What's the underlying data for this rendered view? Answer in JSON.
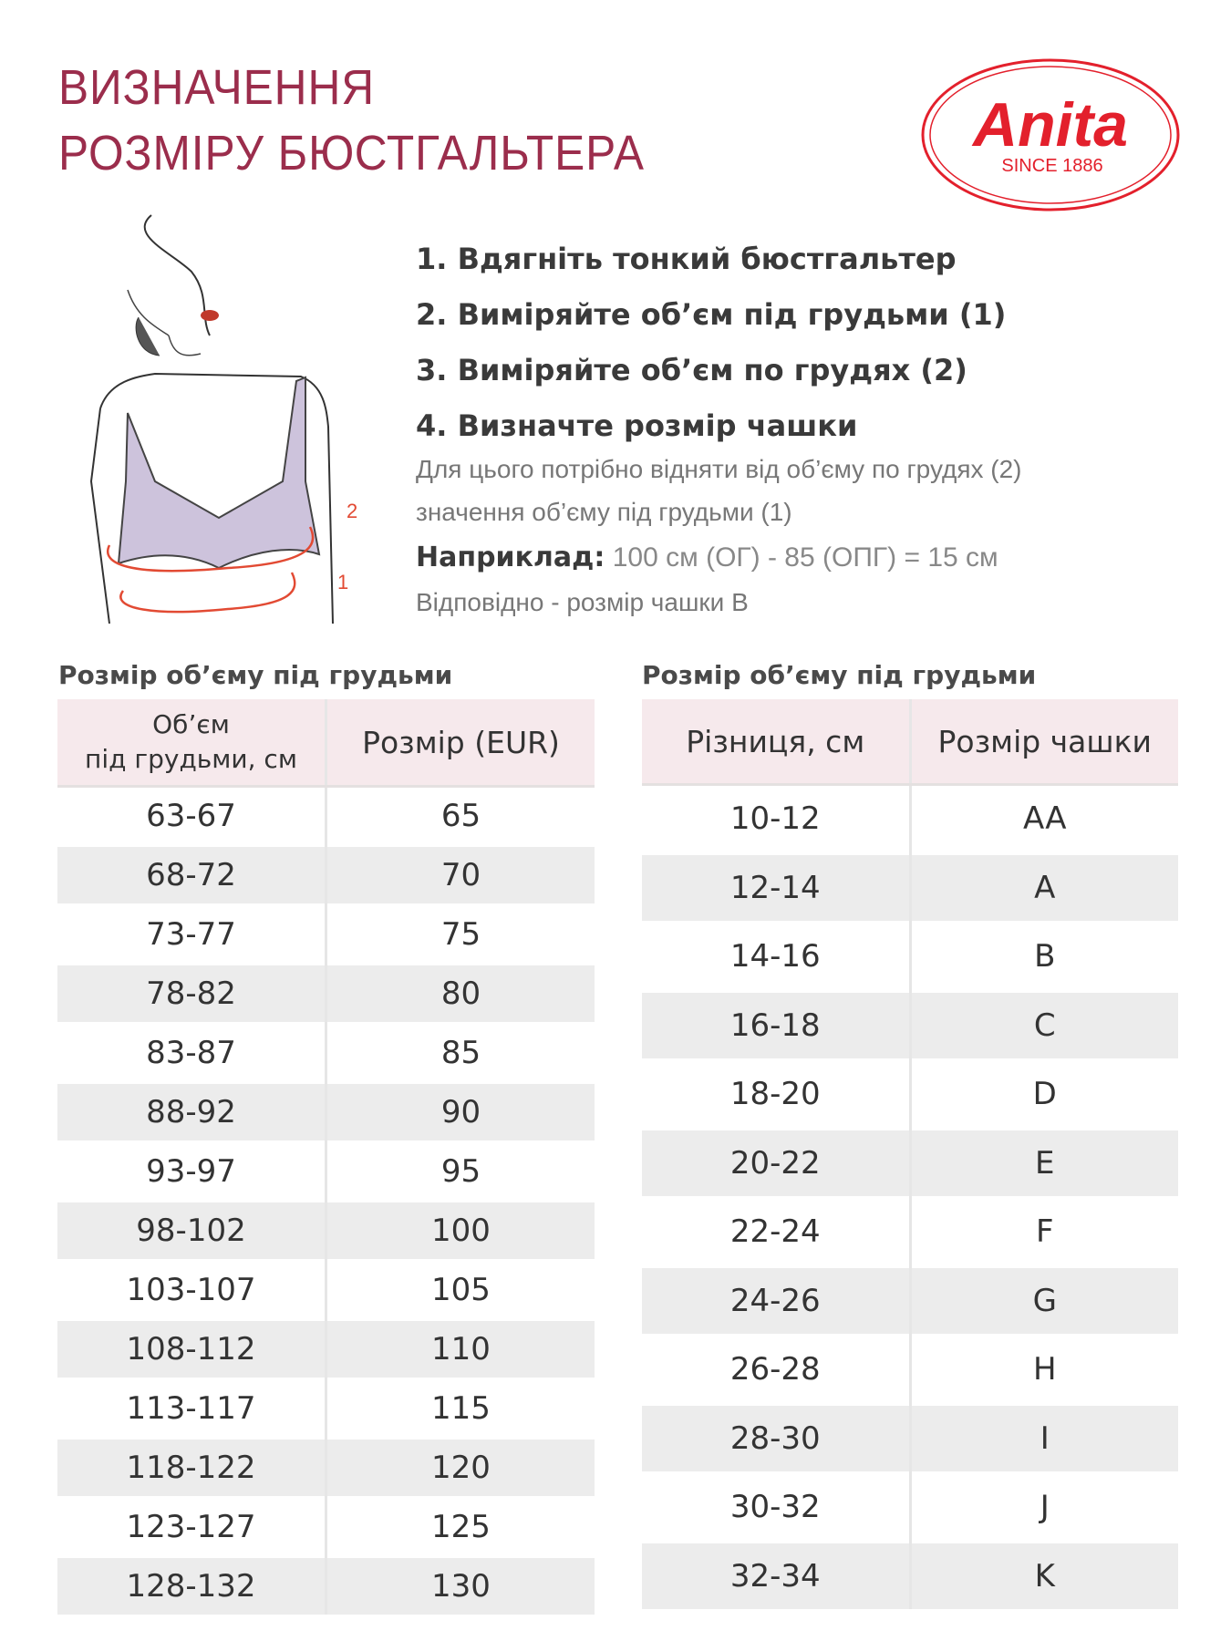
{
  "title": {
    "line1": "ВИЗНАЧЕННЯ",
    "line2": "РОЗМІРУ БЮСТГАЛЬТЕРА",
    "color": "#9b2d4c"
  },
  "logo": {
    "brand": "Anita",
    "tagline": "SINCE 1886",
    "color": "#e3202c"
  },
  "illustration": {
    "label_bust": "2",
    "label_underbust": "1"
  },
  "steps": [
    "1. Вдягніть тонкий бюстгальтер",
    "2. Виміряйте об’єм під грудьми (1)",
    "3. Виміряйте об’єм по грудях (2)",
    "4. Визначте розмір чашки"
  ],
  "description": {
    "line1": "Для цього потрібно відняти від об’єму по грудях (2)",
    "line2": "значення об’єму під грудьми (1)"
  },
  "example": {
    "label": "Наприклад:",
    "text": "100 см (ОГ) - 85 (ОПГ) = 15 см",
    "result": "Відповідно - розмір чашки B"
  },
  "band_table": {
    "caption": "Розмір об’єму під грудьми",
    "headers": [
      "Об’єм під грудьми, см",
      "Розмір (EUR)"
    ],
    "header1_line1": "Об’єм",
    "header1_line2": "під грудьми, см",
    "rows": [
      [
        "63-67",
        "65"
      ],
      [
        "68-72",
        "70"
      ],
      [
        "73-77",
        "75"
      ],
      [
        "78-82",
        "80"
      ],
      [
        "83-87",
        "85"
      ],
      [
        "88-92",
        "90"
      ],
      [
        "93-97",
        "95"
      ],
      [
        "98-102",
        "100"
      ],
      [
        "103-107",
        "105"
      ],
      [
        "108-112",
        "110"
      ],
      [
        "113-117",
        "115"
      ],
      [
        "118-122",
        "120"
      ],
      [
        "123-127",
        "125"
      ],
      [
        "128-132",
        "130"
      ]
    ]
  },
  "cup_table": {
    "caption": "Розмір об’єму під грудьми",
    "headers": [
      "Різниця, см",
      "Розмір чашки"
    ],
    "rows": [
      [
        "10-12",
        "AA"
      ],
      [
        "12-14",
        "A"
      ],
      [
        "14-16",
        "B"
      ],
      [
        "16-18",
        "C"
      ],
      [
        "18-20",
        "D"
      ],
      [
        "20-22",
        "E"
      ],
      [
        "22-24",
        "F"
      ],
      [
        "24-26",
        "G"
      ],
      [
        "26-28",
        "H"
      ],
      [
        "28-30",
        "I"
      ],
      [
        "30-32",
        "J"
      ],
      [
        "32-34",
        "K"
      ]
    ]
  }
}
